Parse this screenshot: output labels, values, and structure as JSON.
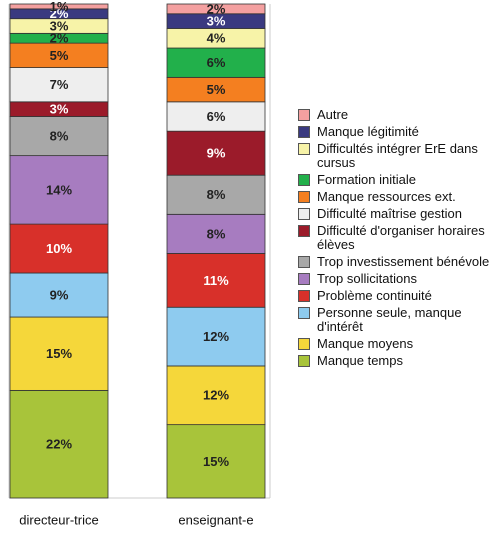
{
  "chart_data": {
    "type": "stacked-bar",
    "categories": [
      "directeur-trice",
      "enseignant-e"
    ],
    "ylim": [
      0,
      101
    ],
    "series": [
      {
        "name": "Manque temps",
        "color": "#a8c43a",
        "values": [
          22,
          15
        ],
        "value_labels": [
          "22%",
          "15%"
        ]
      },
      {
        "name": "Manque moyens",
        "color": "#f5d73a",
        "values": [
          15,
          12
        ],
        "value_labels": [
          "15%",
          "12%"
        ]
      },
      {
        "name": "Personne seule, manque d'intérêt",
        "color": "#8ecbef",
        "values": [
          9,
          12
        ],
        "value_labels": [
          "9%",
          "12%"
        ]
      },
      {
        "name": "Problème continuité",
        "color": "#d8302a",
        "values": [
          10,
          11
        ],
        "value_labels": [
          "10%",
          "11%"
        ]
      },
      {
        "name": "Trop sollicitations",
        "color": "#a77cc0",
        "values": [
          14,
          8
        ],
        "value_labels": [
          "14%",
          "8%"
        ]
      },
      {
        "name": "Trop investissement bénévole",
        "color": "#a8a8a8",
        "values": [
          8,
          8
        ],
        "value_labels": [
          "8%",
          "8%"
        ]
      },
      {
        "name": "Difficulté d'organiser horaires élèves",
        "color": "#9b1b2a",
        "values": [
          3,
          9
        ],
        "value_labels": [
          "3%",
          "9%"
        ]
      },
      {
        "name": "Difficulté maîtrise gestion",
        "color": "#eeeeee",
        "values": [
          7,
          6
        ],
        "value_labels": [
          "7%",
          "6%"
        ]
      },
      {
        "name": "Manque ressources ext.",
        "color": "#f47f20",
        "values": [
          5,
          5
        ],
        "value_labels": [
          "5%",
          "5%"
        ]
      },
      {
        "name": "Formation initiale",
        "color": "#22b04b",
        "values": [
          2,
          6
        ],
        "value_labels": [
          "2%",
          "6%"
        ]
      },
      {
        "name": "Difficultés intégrer ErE dans cursus",
        "color": "#f7f3a8",
        "values": [
          3,
          4
        ],
        "value_labels": [
          "3%",
          "4%"
        ]
      },
      {
        "name": "Manque légitimité",
        "color": "#3a3a80",
        "values": [
          2,
          3
        ],
        "value_labels": [
          "2%",
          "3%"
        ]
      },
      {
        "name": "Autre",
        "color": "#f4a0a0",
        "values": [
          1,
          2
        ],
        "value_labels": [
          "1%",
          "2%"
        ]
      }
    ]
  }
}
